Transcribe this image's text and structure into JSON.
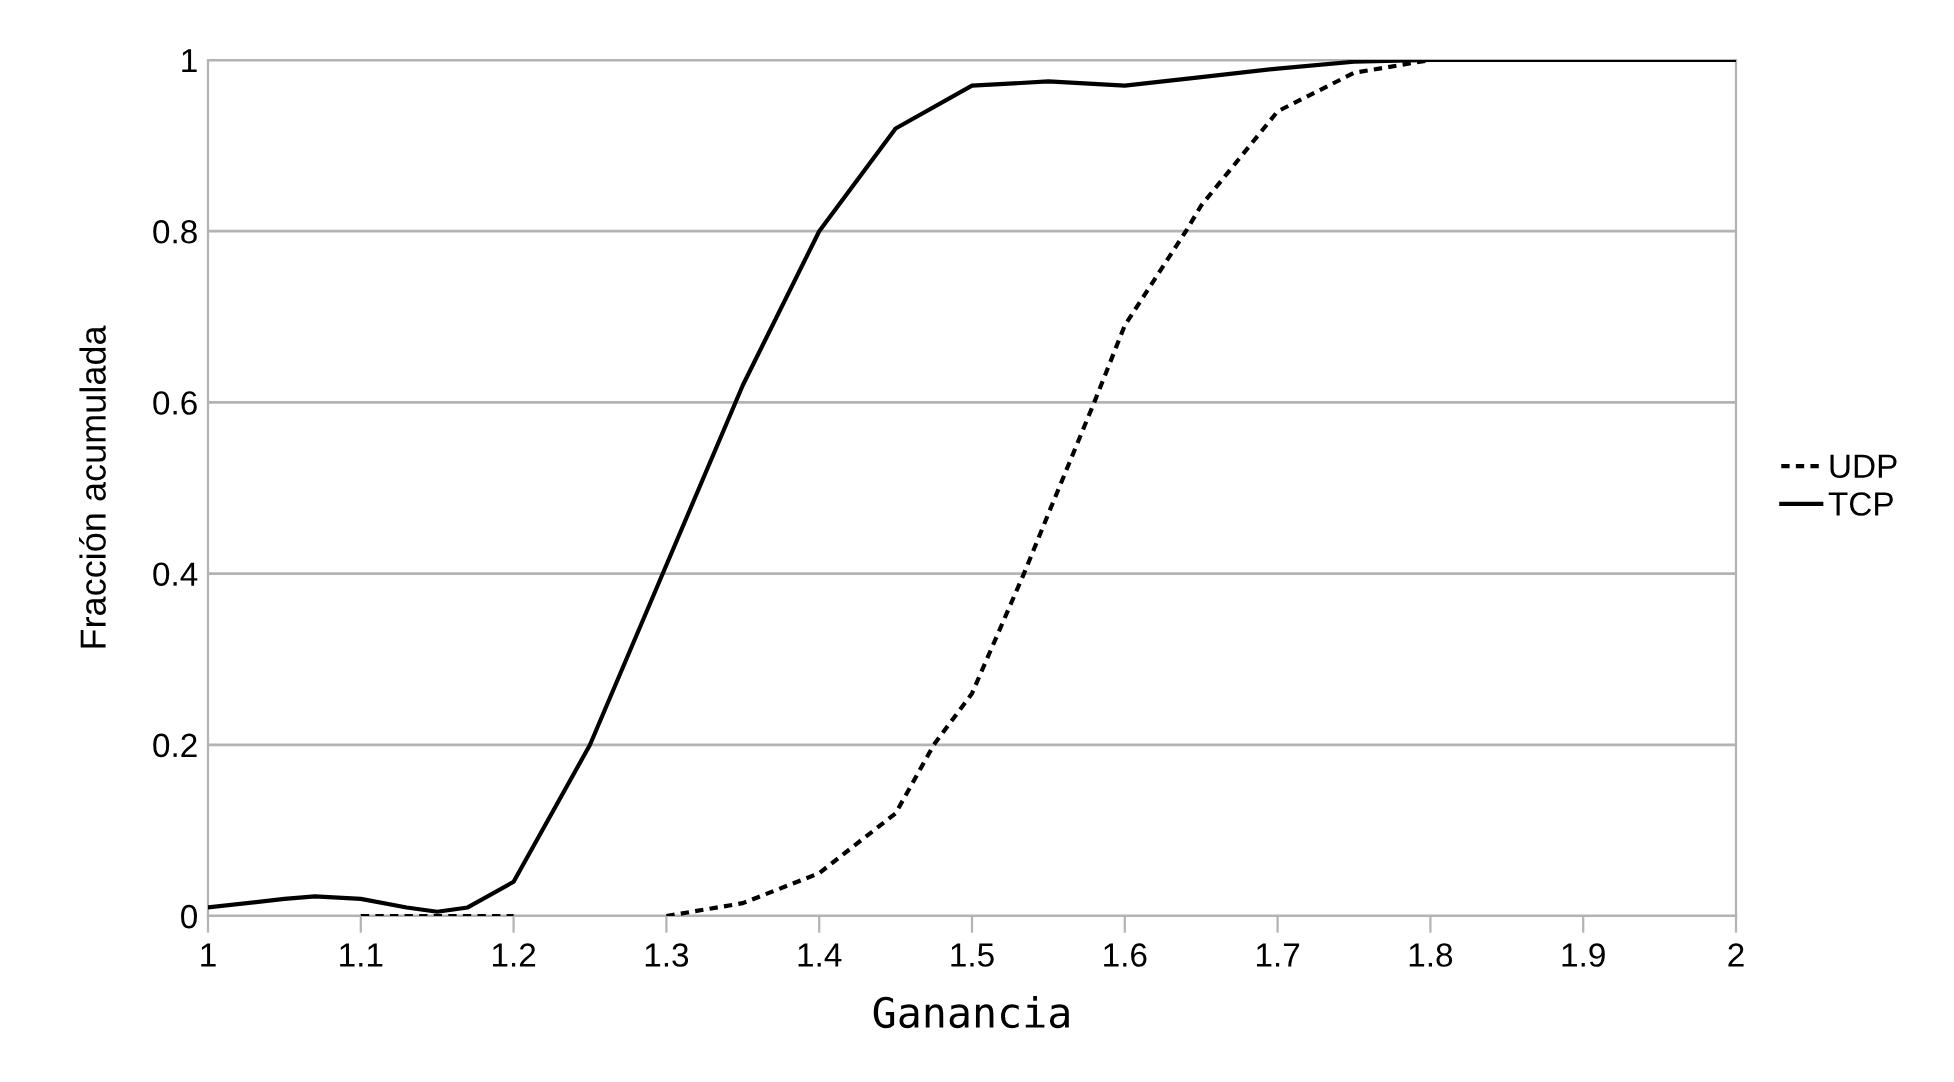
{
  "chart_data": {
    "type": "line",
    "xlabel": "Ganancia",
    "ylabel": "Fracción acumulada",
    "xlim": [
      1,
      2
    ],
    "xticks": [
      1,
      1.1,
      1.2,
      1.3,
      1.4,
      1.5,
      1.6,
      1.7,
      1.8,
      1.9,
      2
    ],
    "ylim": [
      0,
      1
    ],
    "yticks": [
      0,
      0.2,
      0.4,
      0.6,
      0.8,
      1
    ],
    "grid": "y",
    "legend": "right",
    "marker": "none",
    "series": [
      {
        "name": "UDP",
        "color": "#000000",
        "line_style": "dotted",
        "x": [
          1.1,
          1.15,
          1.2,
          1.25,
          1.3,
          1.35,
          1.4,
          1.45,
          1.475,
          1.5,
          1.534,
          1.55,
          1.58,
          1.6,
          1.64,
          1.65,
          1.7,
          1.75,
          1.8,
          1.9,
          2
        ],
        "values": [
          0,
          0,
          0,
          null,
          0,
          0.015,
          0.05,
          0.12,
          0.2,
          0.26,
          0.4,
          0.47,
          0.6,
          0.69,
          0.8,
          0.83,
          0.94,
          0.985,
          1,
          1,
          1
        ]
      },
      {
        "name": "TCP",
        "color": "#000000",
        "line_style": "solid",
        "x": [
          1,
          1.05,
          1.07,
          1.1,
          1.13,
          1.15,
          1.17,
          1.2,
          1.25,
          1.3,
          1.35,
          1.4,
          1.45,
          1.5,
          1.55,
          1.6,
          1.65,
          1.7,
          1.75,
          1.8,
          1.9,
          2
        ],
        "values": [
          0.01,
          0.02,
          0.023,
          0.02,
          0.01,
          0.005,
          0.01,
          0.04,
          0.2,
          0.41,
          0.62,
          0.8,
          0.92,
          0.97,
          0.975,
          0.97,
          0.98,
          0.99,
          0.998,
          1,
          1,
          1
        ]
      }
    ]
  }
}
